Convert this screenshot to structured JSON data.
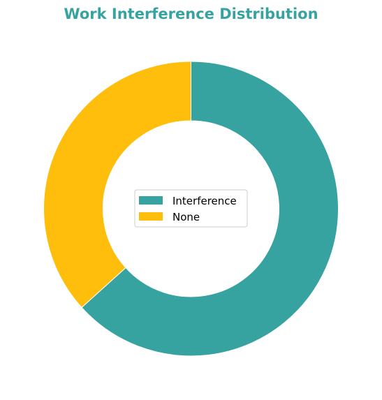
{
  "chart_data": {
    "type": "pie",
    "style": "donut",
    "title": "Work Interference Distribution",
    "title_color": "#36A3A0",
    "start_angle_deg": 90,
    "direction": "clockwise",
    "categories": [
      "Interference",
      "None"
    ],
    "values": [
      63.3,
      36.7
    ],
    "unit": "percent",
    "colors": [
      "#36A3A0",
      "#FFBE0B"
    ],
    "legend": {
      "placement": "center",
      "entries": [
        "Interference",
        "None"
      ]
    }
  }
}
